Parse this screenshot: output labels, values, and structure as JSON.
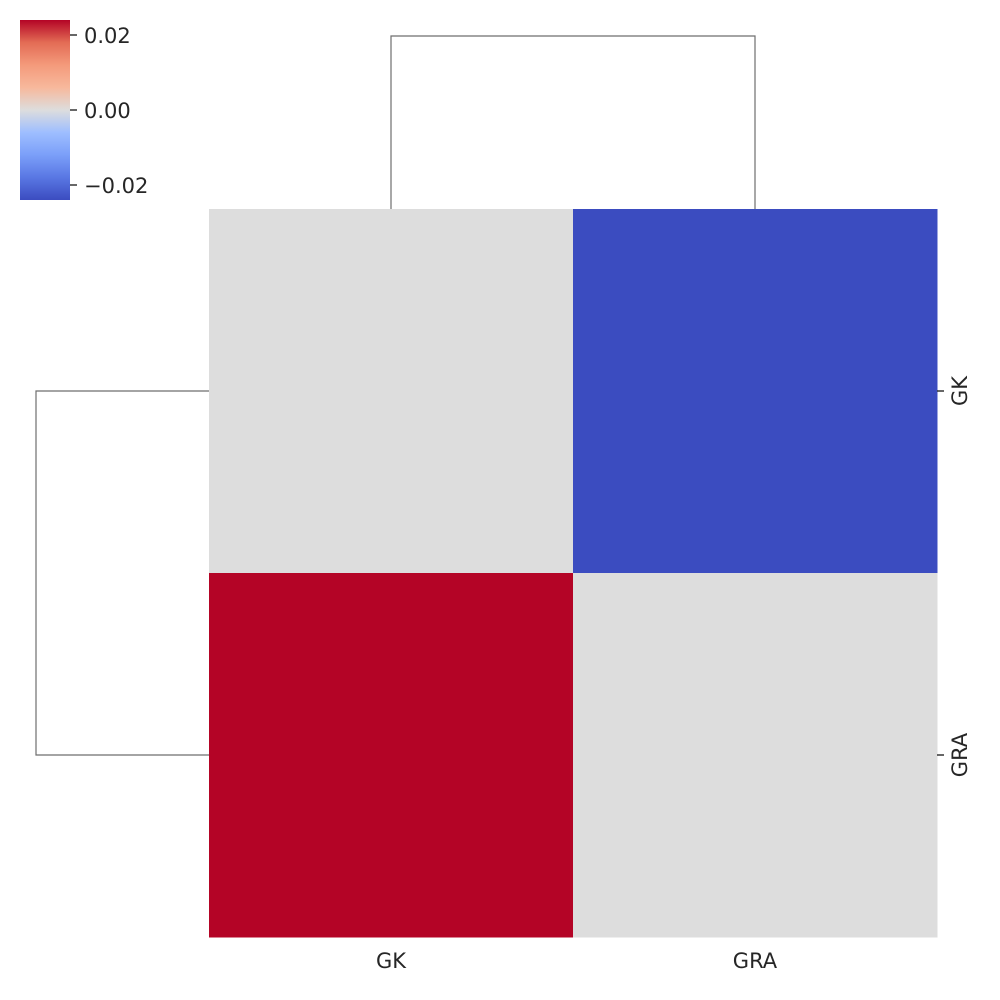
{
  "chart_data": {
    "type": "heatmap",
    "title": "",
    "xlabel": "",
    "ylabel": "",
    "x_categories": [
      "GK",
      "GRA"
    ],
    "y_categories": [
      "GK",
      "GRA"
    ],
    "values": [
      [
        0.0,
        -0.024
      ],
      [
        0.024,
        0.0
      ]
    ],
    "colormap": "coolwarm",
    "colorbar": {
      "vmin": -0.024,
      "vmax": 0.024,
      "ticks": [
        0.02,
        0.0,
        -0.02
      ],
      "tick_labels": [
        "0.02",
        "0.00",
        "−0.02"
      ],
      "placement": "top-left"
    },
    "dendrograms": {
      "row": "left",
      "column": "top"
    },
    "grid": false
  }
}
